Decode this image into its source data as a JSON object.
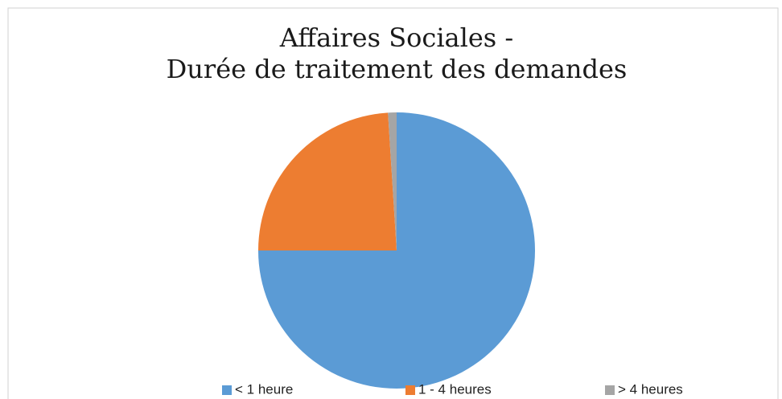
{
  "chart_data": {
    "type": "pie",
    "title": [
      "Affaires Sociales -",
      "Durée de traitement des demandes"
    ],
    "categories": [
      "< 1 heure",
      "1 - 4 heures",
      "> 4 heures"
    ],
    "values": [
      75,
      24,
      1
    ],
    "colors": [
      "#5b9bd5",
      "#ed7d31",
      "#a5a5a5"
    ],
    "legend": "bottom"
  }
}
